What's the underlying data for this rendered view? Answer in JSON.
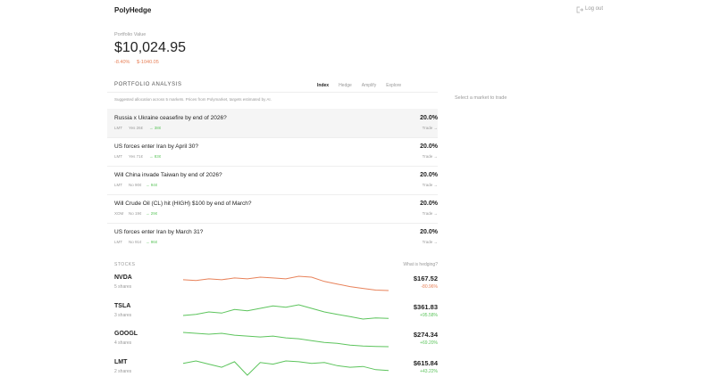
{
  "header": {
    "brand": "PolyHedge",
    "logout": "Log out"
  },
  "portfolio": {
    "label": "Portfolio Value",
    "value": "$10,024.95",
    "change_pct": "-8.40%",
    "change_abs": "$-1040.05"
  },
  "analysis": {
    "title": "PORTFOLIO ANALYSIS",
    "tabs": [
      "Index",
      "Hedge",
      "Amplify",
      "Explore"
    ],
    "active_tab": 0,
    "note": "Suggested allocation across 5 markets. Prices from Polymarket, targets estimated by AI.",
    "markets": [
      {
        "title": "Russia x Ukraine ceasefire by end of 2026?",
        "ticker": "LMT",
        "side": "Yes 26¢",
        "target": "→ 38¢",
        "weight": "20.0%",
        "action": "Trade →"
      },
      {
        "title": "US forces enter Iran by April 30?",
        "ticker": "LMT",
        "side": "Yes 71¢",
        "target": "→ 83¢",
        "weight": "20.0%",
        "action": "Trade →"
      },
      {
        "title": "Will China invade Taiwan by end of 2026?",
        "ticker": "LMT",
        "side": "No 90¢",
        "target": "→ 94¢",
        "weight": "20.0%",
        "action": "Trade →"
      },
      {
        "title": "Will Crude Oil (CL) hit (HIGH) $100 by end of March?",
        "ticker": "XOM",
        "side": "No 19¢",
        "target": "→ 29¢",
        "weight": "20.0%",
        "action": "Trade →"
      },
      {
        "title": "US forces enter Iran by March 31?",
        "ticker": "LMT",
        "side": "No 91¢",
        "target": "→ 96¢",
        "weight": "20.0%",
        "action": "Trade →"
      }
    ]
  },
  "side_panel": {
    "placeholder": "Select a market to trade"
  },
  "stocks": {
    "title": "STOCKS",
    "help": "What is hedging?",
    "items": [
      {
        "ticker": "NVDA",
        "shares": "5 shares",
        "price": "$167.52",
        "change": "-80.96%",
        "color": "#e8825a",
        "spark": [
          180,
          179,
          181,
          180,
          182,
          181,
          183,
          182,
          181,
          184,
          183,
          178,
          175,
          172,
          170,
          168,
          167.5
        ]
      },
      {
        "ticker": "TSLA",
        "shares": "3 shares",
        "price": "$361.83",
        "change": "+95.58%",
        "color": "#5cc45c",
        "spark": [
          362,
          363,
          365,
          364,
          367,
          366,
          368,
          370,
          369,
          371,
          368,
          365,
          363,
          361,
          359,
          360,
          359.5
        ]
      },
      {
        "ticker": "GOOGL",
        "shares": "4 shares",
        "price": "$274.34",
        "change": "+69.20%",
        "color": "#5cc45c",
        "spark": [
          290,
          289,
          288,
          289,
          287,
          286,
          285,
          286,
          284,
          283,
          281,
          279,
          278,
          276,
          275,
          274.5,
          274.3
        ]
      },
      {
        "ticker": "LMT",
        "shares": "2 shares",
        "price": "$615.84",
        "change": "+43.22%",
        "color": "#5cc45c",
        "spark": [
          625,
          628,
          624,
          620,
          627,
          610,
          626,
          624,
          628,
          627,
          625,
          626,
          622,
          620,
          621,
          617,
          615.8
        ]
      }
    ]
  }
}
